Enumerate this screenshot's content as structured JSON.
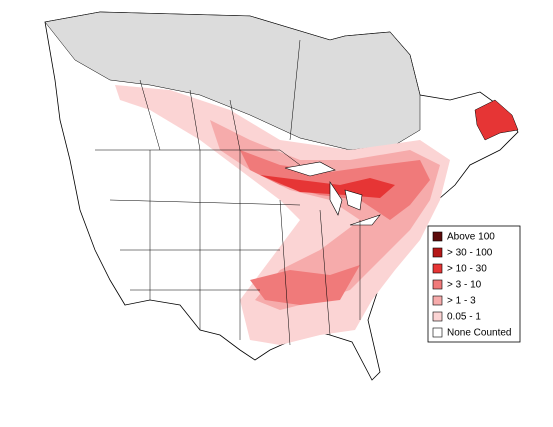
{
  "legend": {
    "items": [
      {
        "label": "Above 100",
        "color": "#5c0b0b"
      },
      {
        "label": "> 30 - 100",
        "color": "#b51717"
      },
      {
        "label": "> 10 - 30",
        "color": "#e63535"
      },
      {
        "label": "> 3 - 10",
        "color": "#f07a7a"
      },
      {
        "label": "> 1 - 3",
        "color": "#f6abab"
      },
      {
        "label": "0.05 - 1",
        "color": "#fbd4d4"
      },
      {
        "label": "None Counted",
        "color": "#ffffff"
      }
    ]
  }
}
